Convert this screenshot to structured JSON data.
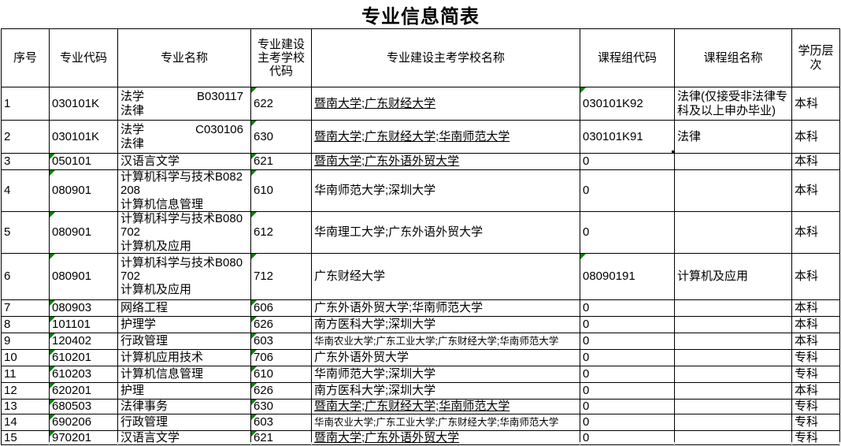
{
  "title": "专业信息简表",
  "columns": [
    "序号",
    "专业代码",
    "专业名称",
    "专业建设主考学校代码",
    "专业建设主考学校名称",
    "课程组代码",
    "课程组名称",
    "学历层次"
  ],
  "colors": {
    "highlight": "#ffff00",
    "flag_triangle": "#008000",
    "grid_border": "#000000"
  },
  "selected_cell": {
    "row": 2,
    "column": "课程组代码",
    "value": "030101K91"
  },
  "rows": [
    {
      "no": "1",
      "major_code": "030101K",
      "major_code_flag": false,
      "major_name": {
        "l1": "法学",
        "l1r": "B030117",
        "l2": "法律",
        "small": false
      },
      "school_code": "622",
      "school_code_flag": true,
      "schools": {
        "text": "暨南大学;广东财经大学",
        "underline": true,
        "small": false
      },
      "group_code": "030101K92",
      "group_code_flag": true,
      "group_selected": false,
      "group_name": {
        "text": "法律(仅接受非法律专科及以上申办毕业)",
        "small": true
      },
      "level": "本科"
    },
    {
      "no": "2",
      "major_code": "030101K",
      "major_code_flag": false,
      "major_name": {
        "l1": "法学",
        "l1r": "C030106",
        "l2": "法律",
        "small": false
      },
      "school_code": "630",
      "school_code_flag": true,
      "schools": {
        "text": "暨南大学;广东财经大学;华南师范大学",
        "underline": true,
        "small": false
      },
      "group_code": "030101K91",
      "group_code_flag": false,
      "group_selected": true,
      "group_name": {
        "text": "法律",
        "small": false
      },
      "level": "本科"
    },
    {
      "no": "3",
      "major_code": "050101",
      "major_code_flag": true,
      "major_name": {
        "l1": "汉语言文学",
        "small": false
      },
      "school_code": "621",
      "school_code_flag": true,
      "schools": {
        "text": "暨南大学;广东外语外贸大学",
        "underline": true,
        "small": false
      },
      "group_code": "0",
      "group_code_flag": false,
      "group_selected": false,
      "group_name": {
        "text": "",
        "small": false
      },
      "level": "本科"
    },
    {
      "no": "4",
      "major_code": "080901",
      "major_code_flag": true,
      "major_name": {
        "l1": "计算机科学与技术B082208",
        "l2": "计算机信息管理",
        "small": true
      },
      "school_code": "610",
      "school_code_flag": true,
      "schools": {
        "text": "华南师范大学;深圳大学",
        "underline": false,
        "small": false
      },
      "group_code": "0",
      "group_code_flag": false,
      "group_selected": false,
      "group_name": {
        "text": "",
        "small": false
      },
      "level": "本科"
    },
    {
      "no": "5",
      "major_code": "080901",
      "major_code_flag": true,
      "major_name": {
        "l1": "计算机科学与技术B080702",
        "l2": "计算机及应用",
        "small": true
      },
      "school_code": "612",
      "school_code_flag": true,
      "schools": {
        "text": "华南理工大学;广东外语外贸大学",
        "underline": false,
        "small": false
      },
      "group_code": "0",
      "group_code_flag": false,
      "group_selected": false,
      "group_name": {
        "text": "",
        "small": false
      },
      "level": "本科"
    },
    {
      "no": "6",
      "major_code": "080901",
      "major_code_flag": true,
      "major_name": {
        "l1": "计算机科学与技术B080702",
        "l2": "计算机及应用",
        "small": true
      },
      "school_code": "712",
      "school_code_flag": true,
      "schools": {
        "text": "广东财经大学",
        "underline": false,
        "small": false
      },
      "group_code": "08090191",
      "group_code_flag": true,
      "group_selected": false,
      "group_name": {
        "text": "计算机及应用",
        "small": false
      },
      "level": "本科"
    },
    {
      "no": "7",
      "major_code": "080903",
      "major_code_flag": true,
      "major_name": {
        "l1": "网络工程",
        "small": false
      },
      "school_code": "606",
      "school_code_flag": true,
      "schools": {
        "text": "广东外语外贸大学;华南师范大学",
        "underline": false,
        "small": false
      },
      "group_code": "0",
      "group_code_flag": false,
      "group_selected": false,
      "group_name": {
        "text": "",
        "small": false
      },
      "level": "本科"
    },
    {
      "no": "8",
      "major_code": "101101",
      "major_code_flag": true,
      "major_name": {
        "l1": "护理学",
        "small": false
      },
      "school_code": "626",
      "school_code_flag": true,
      "schools": {
        "text": "南方医科大学;深圳大学",
        "underline": false,
        "small": false
      },
      "group_code": "0",
      "group_code_flag": false,
      "group_selected": false,
      "group_name": {
        "text": "",
        "small": false
      },
      "level": "本科"
    },
    {
      "no": "9",
      "major_code": "120402",
      "major_code_flag": true,
      "major_name": {
        "l1": "行政管理",
        "small": false
      },
      "school_code": "603",
      "school_code_flag": true,
      "schools": {
        "text": "华南农业大学;广东工业大学;广东财经大学;华南师范大学",
        "underline": false,
        "small": true
      },
      "group_code": "0",
      "group_code_flag": false,
      "group_selected": false,
      "group_name": {
        "text": "",
        "small": false
      },
      "level": "本科"
    },
    {
      "no": "10",
      "major_code": "610201",
      "major_code_flag": true,
      "major_name": {
        "l1": "计算机应用技术",
        "small": false
      },
      "school_code": "706",
      "school_code_flag": true,
      "schools": {
        "text": "广东外语外贸大学",
        "underline": false,
        "small": false
      },
      "group_code": "0",
      "group_code_flag": false,
      "group_selected": false,
      "group_name": {
        "text": "",
        "small": false
      },
      "level": "专科"
    },
    {
      "no": "11",
      "major_code": "610203",
      "major_code_flag": true,
      "major_name": {
        "l1": "计算机信息管理",
        "small": false
      },
      "school_code": "610",
      "school_code_flag": true,
      "schools": {
        "text": "华南师范大学;深圳大学",
        "underline": false,
        "small": false
      },
      "group_code": "0",
      "group_code_flag": false,
      "group_selected": false,
      "group_name": {
        "text": "",
        "small": false
      },
      "level": "专科"
    },
    {
      "no": "12",
      "major_code": "620201",
      "major_code_flag": true,
      "major_name": {
        "l1": "护理",
        "small": false
      },
      "school_code": "626",
      "school_code_flag": true,
      "schools": {
        "text": "南方医科大学;深圳大学",
        "underline": false,
        "small": false
      },
      "group_code": "0",
      "group_code_flag": false,
      "group_selected": false,
      "group_name": {
        "text": "",
        "small": false
      },
      "level": "本科"
    },
    {
      "no": "13",
      "major_code": "680503",
      "major_code_flag": true,
      "major_name": {
        "l1": "法律事务",
        "small": false
      },
      "school_code": "630",
      "school_code_flag": true,
      "schools": {
        "text": "暨南大学;广东财经大学;华南师范大学",
        "underline": true,
        "small": false
      },
      "group_code": "0",
      "group_code_flag": false,
      "group_selected": false,
      "group_name": {
        "text": "",
        "small": false
      },
      "level": "专科"
    },
    {
      "no": "14",
      "major_code": "690206",
      "major_code_flag": true,
      "major_name": {
        "l1": "行政管理",
        "small": false
      },
      "school_code": "603",
      "school_code_flag": true,
      "schools": {
        "text": "华南农业大学;广东工业大学;广东财经大学;华南师范大学",
        "underline": false,
        "small": true
      },
      "group_code": "0",
      "group_code_flag": false,
      "group_selected": false,
      "group_name": {
        "text": "",
        "small": false
      },
      "level": "专科"
    },
    {
      "no": "15",
      "major_code": "970201",
      "major_code_flag": true,
      "major_name": {
        "l1": "汉语言文学",
        "small": false
      },
      "school_code": "621",
      "school_code_flag": true,
      "schools": {
        "text": "暨南大学;广东外语外贸大学",
        "underline": true,
        "small": false
      },
      "group_code": "0",
      "group_code_flag": false,
      "group_selected": false,
      "group_name": {
        "text": "",
        "small": false
      },
      "level": "专科"
    }
  ]
}
